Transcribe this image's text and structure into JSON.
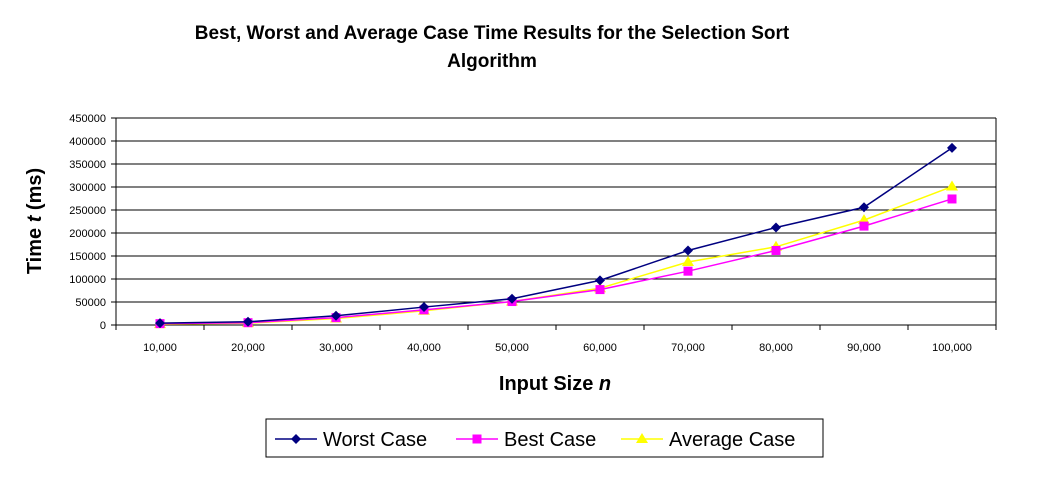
{
  "chart_data": {
    "type": "line",
    "title_line1": "Best, Worst and Average Case Time Results for the Selection Sort",
    "title_line2": "Algorithm",
    "xlabel_main": "Input Size ",
    "xlabel_var": "n",
    "ylabel_main": "Time ",
    "ylabel_var": "t",
    "ylabel_unit": " (ms)",
    "categories": [
      "10,000",
      "20,000",
      "30,000",
      "40,000",
      "50,000",
      "60,000",
      "70,000",
      "80,000",
      "90,000",
      "100,000"
    ],
    "y_ticks": [
      "0",
      "50000",
      "100000",
      "150000",
      "200000",
      "250000",
      "300000",
      "350000",
      "400000",
      "450000"
    ],
    "ylim": [
      0,
      450000
    ],
    "grid": "horizontal",
    "legend_position": "bottom",
    "series": [
      {
        "name": "Worst Case",
        "color": "#000080",
        "marker": "diamond",
        "values": [
          4000,
          7000,
          20000,
          39000,
          57000,
          97000,
          162000,
          212000,
          256000,
          385000
        ]
      },
      {
        "name": "Best Case",
        "color": "#ff00ff",
        "marker": "square",
        "values": [
          3000,
          5000,
          16000,
          33000,
          51000,
          77000,
          117000,
          162000,
          215000,
          274000
        ]
      },
      {
        "name": "Average Case",
        "color": "#ffff00",
        "marker": "triangle",
        "values": [
          2000,
          4000,
          14000,
          31000,
          51000,
          80000,
          137000,
          170000,
          228000,
          301000
        ]
      }
    ]
  }
}
